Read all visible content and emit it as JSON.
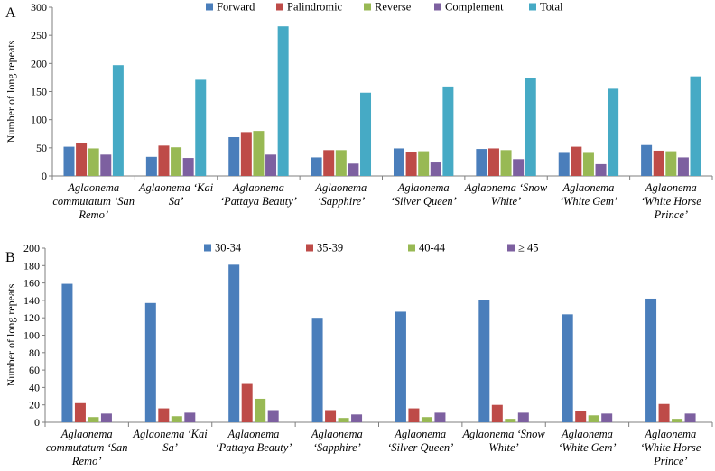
{
  "chart_data": [
    {
      "panel_label": "A",
      "type": "bar",
      "ylabel": "Number of long repeats",
      "ylim": [
        0,
        300
      ],
      "yticks": [
        0,
        50,
        100,
        150,
        200,
        250,
        300
      ],
      "category_lines": [
        [
          "Aglaonema",
          "commutatum ‘San",
          "Remo’"
        ],
        [
          "Aglaonema ‘Kai",
          "Sa’"
        ],
        [
          "Aglaonema",
          "‘Pattaya Beauty’"
        ],
        [
          "Aglaonema",
          "‘Sapphire’"
        ],
        [
          "Aglaonema",
          "‘Silver Queen’"
        ],
        [
          "Aglaonema ‘Snow",
          "White’"
        ],
        [
          "Aglaonema",
          "‘White Gem’"
        ],
        [
          "Aglaonema",
          "‘White Horse",
          "Prince’"
        ]
      ],
      "series": [
        {
          "name": "Forward",
          "color": "#4a7ebb",
          "values": [
            52,
            34,
            69,
            33,
            49,
            48,
            41,
            55
          ]
        },
        {
          "name": "Palindromic",
          "color": "#be4b48",
          "values": [
            58,
            54,
            78,
            46,
            42,
            49,
            52,
            45
          ]
        },
        {
          "name": "Reverse",
          "color": "#98b954",
          "values": [
            49,
            51,
            80,
            46,
            44,
            46,
            41,
            44
          ]
        },
        {
          "name": "Complement",
          "color": "#7d60a0",
          "values": [
            38,
            32,
            38,
            22,
            24,
            30,
            21,
            33
          ]
        },
        {
          "name": "Total",
          "color": "#46aac5",
          "values": [
            197,
            171,
            266,
            148,
            159,
            174,
            155,
            177
          ]
        }
      ]
    },
    {
      "panel_label": "B",
      "type": "bar",
      "ylabel": "Number of long repeats",
      "ylim": [
        0,
        200
      ],
      "yticks": [
        0,
        20,
        40,
        60,
        80,
        100,
        120,
        140,
        160,
        180,
        200
      ],
      "category_lines": [
        [
          "Aglaonema",
          "commutatum ‘San",
          "Remo’"
        ],
        [
          "Aglaonema ‘Kai",
          "Sa’"
        ],
        [
          "Aglaonema",
          "‘Pattaya Beauty’"
        ],
        [
          "Aglaonema",
          "‘Sapphire’"
        ],
        [
          "Aglaonema",
          "‘Silver Queen’"
        ],
        [
          "Aglaonema ‘Snow",
          "White’"
        ],
        [
          "Aglaonema",
          "‘White Gem’"
        ],
        [
          "Aglaonema",
          "‘White Horse",
          "Prince’"
        ]
      ],
      "series": [
        {
          "name": "30-34",
          "color": "#4a7ebb",
          "values": [
            159,
            137,
            181,
            120,
            127,
            140,
            124,
            142
          ]
        },
        {
          "name": "35-39",
          "color": "#be4b48",
          "values": [
            22,
            16,
            44,
            14,
            16,
            20,
            13,
            21
          ]
        },
        {
          "name": "40-44",
          "color": "#98b954",
          "values": [
            6,
            7,
            27,
            5,
            6,
            4,
            8,
            4
          ]
        },
        {
          "name": "≥ 45",
          "color": "#7d60a0",
          "values": [
            10,
            11,
            14,
            9,
            11,
            11,
            10,
            10
          ]
        }
      ]
    }
  ]
}
